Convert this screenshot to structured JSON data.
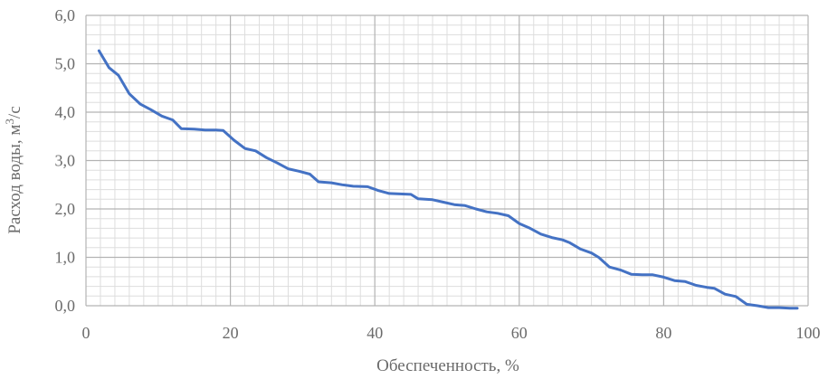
{
  "chart_data": {
    "type": "line",
    "xlabel": "Обеспеченность, %",
    "ylabel_main": "Расход воды, м",
    "ylabel_sup": "3",
    "ylabel_tail": "/с",
    "xlim": [
      0,
      100
    ],
    "ylim": [
      0,
      6
    ],
    "x_major_ticks": [
      0,
      20,
      40,
      60,
      80,
      100
    ],
    "x_tick_labels": [
      "0",
      "20",
      "40",
      "60",
      "80",
      "100"
    ],
    "y_major_ticks": [
      0,
      1,
      2,
      3,
      4,
      5,
      6
    ],
    "y_tick_labels": [
      "0,0",
      "1,0",
      "2,0",
      "3,0",
      "4,0",
      "5,0",
      "6,0"
    ],
    "x_minor_step": 2,
    "y_minor_step": 0.2,
    "grid": true,
    "colors": {
      "line": "#4472C4",
      "major_grid": "#b3b3b3",
      "minor_grid": "#dddddd"
    },
    "series": [
      {
        "x": [
          1.8,
          3.2,
          4.5,
          6.0,
          7.5,
          9.0,
          10.5,
          12.0,
          13.2,
          15.0,
          16.5,
          18.0,
          19.0,
          20.5,
          22.0,
          23.5,
          25.0,
          26.5,
          28.0,
          29.5,
          31.0,
          32.2,
          34.0,
          35.5,
          37.0,
          39.0,
          40.5,
          42.0,
          43.5,
          45.0,
          46.0,
          48.0,
          49.5,
          51.0,
          52.5,
          54.0,
          55.5,
          57.0,
          58.5,
          60.0,
          61.5,
          63.0,
          64.5,
          66.0,
          67.0,
          68.5,
          70.0,
          71.0,
          72.5,
          74.0,
          75.5,
          77.0,
          78.5,
          80.0,
          81.5,
          83.0,
          84.5,
          86.0,
          87.0,
          88.5,
          90.0,
          91.5,
          93.0,
          94.5,
          96.0,
          97.5,
          98.5
        ],
        "y": [
          5.27,
          4.92,
          4.76,
          4.38,
          4.17,
          4.05,
          3.92,
          3.84,
          3.66,
          3.65,
          3.63,
          3.63,
          3.62,
          3.42,
          3.25,
          3.2,
          3.06,
          2.95,
          2.83,
          2.78,
          2.72,
          2.56,
          2.54,
          2.5,
          2.47,
          2.46,
          2.38,
          2.32,
          2.31,
          2.3,
          2.21,
          2.19,
          2.14,
          2.09,
          2.07,
          2.0,
          1.94,
          1.91,
          1.86,
          1.7,
          1.6,
          1.48,
          1.41,
          1.36,
          1.3,
          1.17,
          1.09,
          1.0,
          0.8,
          0.74,
          0.65,
          0.64,
          0.64,
          0.59,
          0.52,
          0.5,
          0.42,
          0.38,
          0.36,
          0.24,
          0.19,
          0.03,
          0.0,
          -0.04,
          -0.04,
          -0.05,
          -0.05
        ]
      }
    ]
  }
}
